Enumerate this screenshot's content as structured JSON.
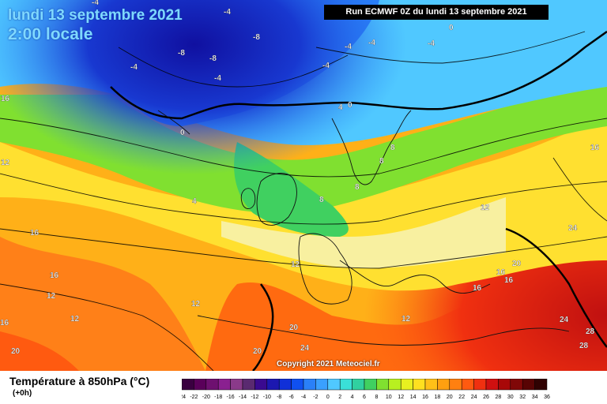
{
  "header": {
    "date": "lundi 13 septembre 2021",
    "time": "2:00 locale",
    "run": "Run ECMWF 0Z du lundi 13 septembre 2021"
  },
  "footer": {
    "copyright": "Copyright 2021 Meteociel.fr",
    "legend_title": "Température à 850hPa (°C)",
    "legend_sub": "(+0h)"
  },
  "colorbar": {
    "ticks": [
      "-24",
      "-22",
      "-20",
      "-18",
      "-16",
      "-14",
      "-12",
      "-10",
      "-8",
      "-6",
      "-4",
      "-2",
      "0",
      "2",
      "4",
      "6",
      "8",
      "10",
      "12",
      "14",
      "16",
      "18",
      "20",
      "22",
      "24",
      "26",
      "28",
      "30",
      "32",
      "34",
      "36"
    ],
    "colors": [
      "#3a0040",
      "#5a005a",
      "#6e1070",
      "#8a2090",
      "#8a3a8a",
      "#5a2a70",
      "#3a0a90",
      "#1c18b0",
      "#1030d8",
      "#1050f0",
      "#2a80f8",
      "#3aa0ff",
      "#50c8ff",
      "#3ae0d8",
      "#30d0a0",
      "#40d060",
      "#80e030",
      "#b8f020",
      "#e8f020",
      "#ffe020",
      "#ffc018",
      "#ffa010",
      "#ff8010",
      "#ff5a10",
      "#f03010",
      "#d01010",
      "#a80808",
      "#800808",
      "#580404",
      "#300202"
    ]
  },
  "isotherm_labels": [
    {
      "text": "-4"
    },
    {
      "text": "-8"
    },
    {
      "text": "-8"
    },
    {
      "text": "-8"
    },
    {
      "text": "-4"
    },
    {
      "text": "-4"
    },
    {
      "text": "-4"
    },
    {
      "text": "-4"
    },
    {
      "text": "-4"
    },
    {
      "text": "-4"
    },
    {
      "text": "-4"
    },
    {
      "text": "0"
    },
    {
      "text": "0"
    },
    {
      "text": "0"
    },
    {
      "text": "16"
    },
    {
      "text": "16"
    },
    {
      "text": "12"
    },
    {
      "text": "4"
    },
    {
      "text": "4"
    },
    {
      "text": "8"
    },
    {
      "text": "8"
    },
    {
      "text": "8"
    },
    {
      "text": "8"
    },
    {
      "text": "16"
    },
    {
      "text": "16"
    },
    {
      "text": "12"
    },
    {
      "text": "12"
    },
    {
      "text": "12"
    },
    {
      "text": "12"
    },
    {
      "text": "12"
    },
    {
      "text": "12"
    },
    {
      "text": "16"
    },
    {
      "text": "16"
    },
    {
      "text": "16"
    },
    {
      "text": "20"
    },
    {
      "text": "20"
    },
    {
      "text": "24"
    },
    {
      "text": "24"
    },
    {
      "text": "20"
    },
    {
      "text": "24"
    },
    {
      "text": "28"
    },
    {
      "text": "28"
    },
    {
      "text": "20"
    },
    {
      "text": "16"
    }
  ]
}
